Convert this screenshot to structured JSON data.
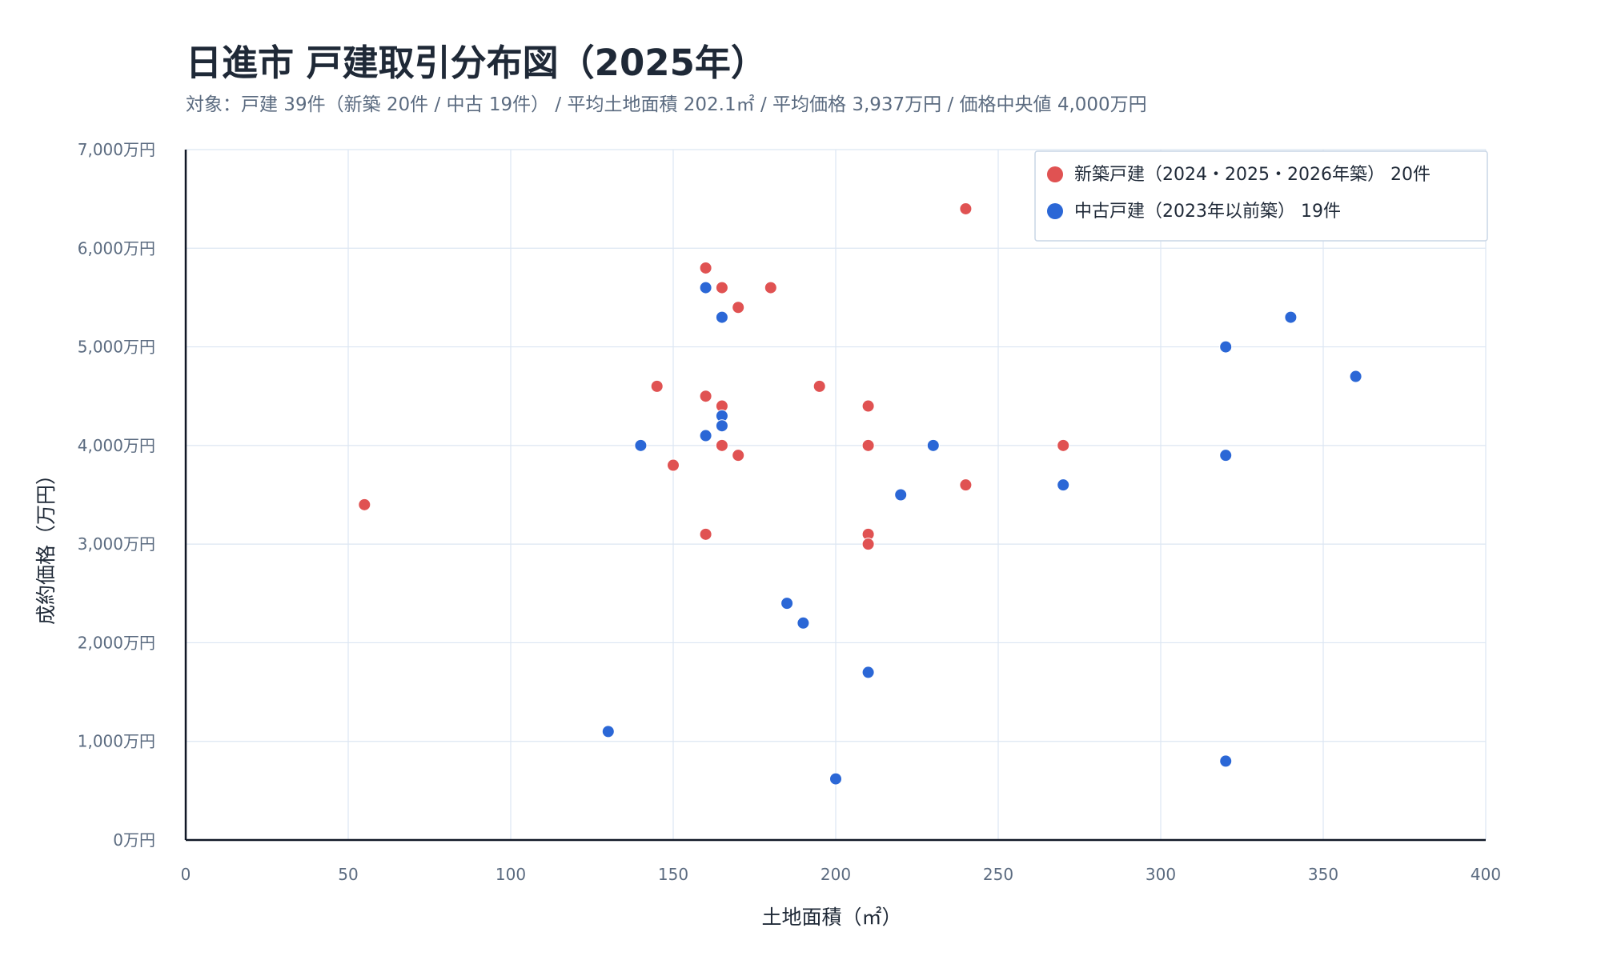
{
  "title": "日進市 戸建取引分布図（2025年）",
  "subtitle": "対象：戸建 39件（新築 20件 / 中古 19件） / 平均土地面積 202.1㎡ / 平均価格 3,937万円 / 価格中央値 4,000万円",
  "chart_data": {
    "type": "scatter",
    "title": "日進市 戸建取引分布図（2025年）",
    "xlabel": "土地面積（㎡）",
    "ylabel": "成約価格（万円）",
    "xlim": [
      0,
      400
    ],
    "ylim": [
      0,
      7000
    ],
    "x_ticks": [
      0,
      50,
      100,
      150,
      200,
      250,
      300,
      350,
      400
    ],
    "x_tick_labels": [
      "0",
      "50",
      "100",
      "150",
      "200",
      "250",
      "300",
      "350",
      "400"
    ],
    "y_ticks": [
      0,
      1000,
      2000,
      3000,
      4000,
      5000,
      6000,
      7000
    ],
    "y_tick_labels": [
      "0万円",
      "1,000万円",
      "2,000万円",
      "3,000万円",
      "4,000万円",
      "5,000万円",
      "6,000万円",
      "7,000万円"
    ],
    "grid": true,
    "legend_position": "top-right",
    "series": [
      {
        "name": "新築戸建（2024・2025・2026年築） 20件",
        "color": "#e05252",
        "points": [
          {
            "x": 55,
            "y": 3400
          },
          {
            "x": 145,
            "y": 4600
          },
          {
            "x": 150,
            "y": 3800
          },
          {
            "x": 160,
            "y": 5800
          },
          {
            "x": 160,
            "y": 4500
          },
          {
            "x": 160,
            "y": 3100
          },
          {
            "x": 165,
            "y": 5600
          },
          {
            "x": 165,
            "y": 4400
          },
          {
            "x": 165,
            "y": 4000
          },
          {
            "x": 170,
            "y": 5400
          },
          {
            "x": 170,
            "y": 3900
          },
          {
            "x": 180,
            "y": 5600
          },
          {
            "x": 195,
            "y": 4600
          },
          {
            "x": 210,
            "y": 4400
          },
          {
            "x": 210,
            "y": 4000
          },
          {
            "x": 210,
            "y": 3100
          },
          {
            "x": 210,
            "y": 3000
          },
          {
            "x": 240,
            "y": 6400
          },
          {
            "x": 240,
            "y": 3600
          },
          {
            "x": 270,
            "y": 4000
          }
        ]
      },
      {
        "name": "中古戸建（2023年以前築） 19件",
        "color": "#2b67d6",
        "points": [
          {
            "x": 130,
            "y": 1100
          },
          {
            "x": 140,
            "y": 4000
          },
          {
            "x": 160,
            "y": 5600
          },
          {
            "x": 160,
            "y": 4100
          },
          {
            "x": 165,
            "y": 5300
          },
          {
            "x": 165,
            "y": 4300
          },
          {
            "x": 165,
            "y": 4200
          },
          {
            "x": 185,
            "y": 2400
          },
          {
            "x": 190,
            "y": 2200
          },
          {
            "x": 200,
            "y": 620
          },
          {
            "x": 210,
            "y": 1700
          },
          {
            "x": 220,
            "y": 3500
          },
          {
            "x": 230,
            "y": 4000
          },
          {
            "x": 270,
            "y": 3600
          },
          {
            "x": 320,
            "y": 5000
          },
          {
            "x": 320,
            "y": 3900
          },
          {
            "x": 320,
            "y": 800
          },
          {
            "x": 340,
            "y": 5300
          },
          {
            "x": 360,
            "y": 4700
          }
        ]
      }
    ]
  }
}
